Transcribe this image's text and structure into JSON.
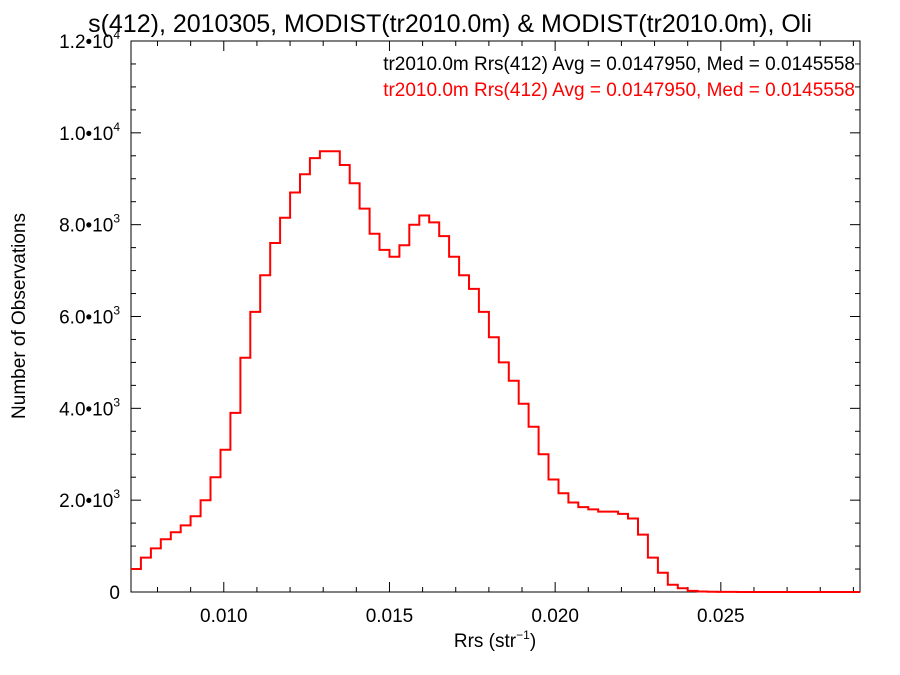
{
  "chart_data": {
    "type": "line",
    "title": "s(412), 2010305, MODIST(tr2010.0m) & MODIST(tr2010.0m), Oli",
    "xlabel": "Rrs (str",
    "xlabel_sup": "−1",
    "xlabel_close": ")",
    "ylabel": "Number of Observations",
    "xlim": [
      0.0072,
      0.0292
    ],
    "ylim": [
      0,
      12000
    ],
    "x_ticks": [
      0.01,
      0.015,
      0.02,
      0.025
    ],
    "x_tick_labels": [
      "0.010",
      "0.015",
      "0.020",
      "0.025"
    ],
    "y_ticks": [
      0,
      2000,
      4000,
      6000,
      8000,
      10000,
      12000
    ],
    "y_tick_labels": [
      {
        "base": "0",
        "exp": ""
      },
      {
        "base": "2.0•10",
        "exp": "3"
      },
      {
        "base": "4.0•10",
        "exp": "3"
      },
      {
        "base": "6.0•10",
        "exp": "3"
      },
      {
        "base": "8.0•10",
        "exp": "3"
      },
      {
        "base": "1.0•10",
        "exp": "4"
      },
      {
        "base": "1.2•10",
        "exp": "4"
      }
    ],
    "grid": false,
    "legend_placement": "top-right",
    "annotations": [
      {
        "text": "tr2010.0m Rrs(412) Avg = 0.0147950, Med = 0.0145558",
        "color": "#000000"
      },
      {
        "text": "tr2010.0m Rrs(412) Avg = 0.0147950, Med = 0.0145558",
        "color": "#ff0000"
      }
    ],
    "series": [
      {
        "color": "#ff0000",
        "x": [
          0.0072,
          0.0075,
          0.0078,
          0.0081,
          0.0084,
          0.0087,
          0.009,
          0.0093,
          0.0096,
          0.0099,
          0.0102,
          0.0105,
          0.0108,
          0.0111,
          0.0114,
          0.0117,
          0.012,
          0.0123,
          0.0126,
          0.0129,
          0.0132,
          0.0135,
          0.0138,
          0.0141,
          0.0144,
          0.0147,
          0.015,
          0.0153,
          0.0156,
          0.0159,
          0.0162,
          0.0165,
          0.0168,
          0.0171,
          0.0174,
          0.0177,
          0.018,
          0.0183,
          0.0186,
          0.0189,
          0.0192,
          0.0195,
          0.0198,
          0.0201,
          0.0204,
          0.0207,
          0.021,
          0.0213,
          0.0216,
          0.0219,
          0.0222,
          0.0225,
          0.0228,
          0.0231,
          0.0234,
          0.0237,
          0.024,
          0.0243,
          0.0246,
          0.0249,
          0.0252,
          0.0255,
          0.0258,
          0.0261,
          0.0264,
          0.0267,
          0.027,
          0.0273,
          0.0276,
          0.0279,
          0.0282,
          0.0285,
          0.0288,
          0.0291
        ],
        "y": [
          500,
          750,
          950,
          1150,
          1300,
          1450,
          1650,
          2000,
          2500,
          3100,
          3900,
          5100,
          6100,
          6900,
          7600,
          8150,
          8700,
          9100,
          9450,
          9600,
          9600,
          9300,
          8900,
          8350,
          7800,
          7450,
          7300,
          7550,
          8000,
          8200,
          8050,
          7750,
          7300,
          6900,
          6600,
          6100,
          5550,
          5000,
          4600,
          4100,
          3600,
          3000,
          2450,
          2150,
          1950,
          1850,
          1800,
          1750,
          1750,
          1700,
          1600,
          1250,
          750,
          420,
          160,
          80,
          25,
          10,
          5,
          3,
          2,
          1,
          1,
          0,
          0,
          0,
          0,
          0,
          0,
          0,
          0,
          0,
          0,
          0
        ]
      }
    ]
  }
}
